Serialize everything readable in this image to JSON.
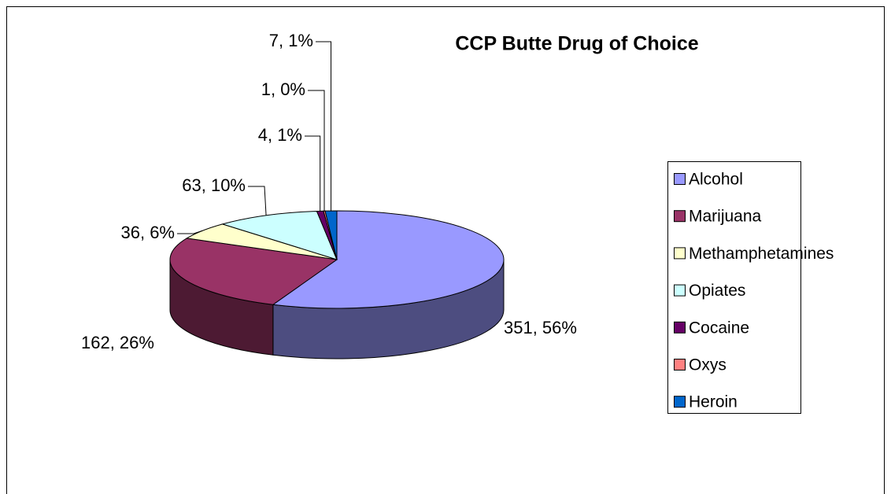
{
  "chart_data": {
    "type": "pie3d",
    "title": "CCP Butte Drug of Choice",
    "categories": [
      "Alcohol",
      "Marijuana",
      "Methamphetamines",
      "Opiates",
      "Cocaine",
      "Oxys",
      "Heroin"
    ],
    "values": [
      351,
      162,
      36,
      63,
      4,
      1,
      7
    ],
    "value_labels": [
      "351, 56%",
      "162, 26%",
      "36, 6%",
      "63, 10%",
      "4, 1%",
      "1, 0%",
      "7, 1%"
    ],
    "colors": [
      "#9999ff",
      "#993366",
      "#ffffcc",
      "#ccffff",
      "#660066",
      "#ff8080",
      "#0066cc"
    ],
    "legend": "right"
  }
}
